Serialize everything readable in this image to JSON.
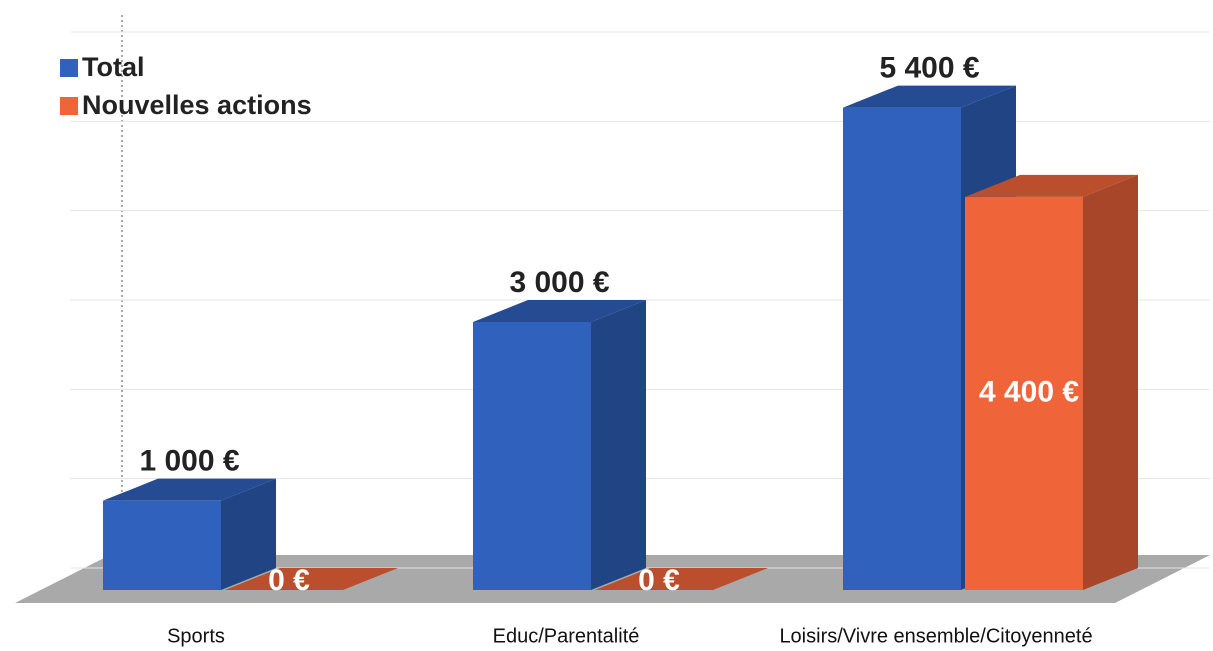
{
  "chart_data": {
    "type": "bar3d",
    "categories": [
      "Sports",
      "Educ/Parentalité",
      "Loisirs/Vivre ensemble/Citoyenneté"
    ],
    "series": [
      {
        "name": "Total",
        "color": "#2f61bd",
        "values": [
          1000,
          3000,
          5400
        ],
        "value_labels": [
          "1 000 €",
          "3 000 €",
          "5 400 €"
        ]
      },
      {
        "name": "Nouvelles actions",
        "color": "#f0643a",
        "values": [
          0,
          0,
          4400
        ],
        "value_labels": [
          "0 €",
          "0 €",
          "4 400 €"
        ]
      }
    ],
    "ylim": [
      0,
      6000
    ],
    "yticks": [
      0,
      1000,
      2000,
      3000,
      4000,
      5000,
      6000
    ],
    "grid": true,
    "legend": "top-left"
  }
}
